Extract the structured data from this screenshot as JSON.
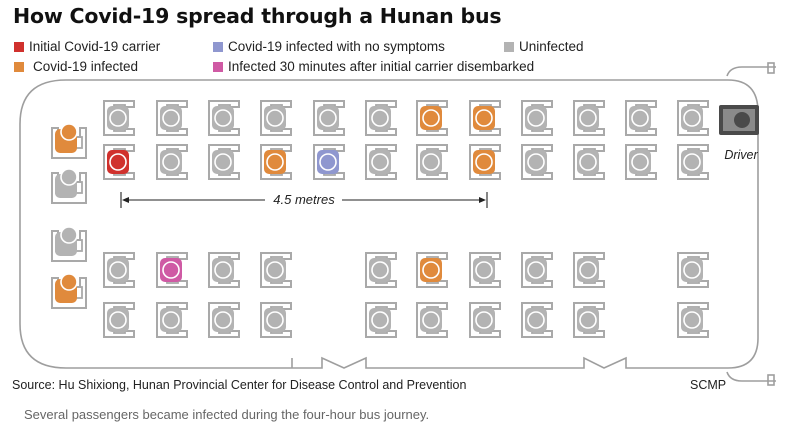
{
  "title": "How Covid-19 spread through a Hunan bus",
  "legend": [
    {
      "label": "Initial Covid-19 carrier",
      "color": "#d0312d"
    },
    {
      "label": "Covid-19 infected",
      "color": "#e08a3c"
    },
    {
      "label": "Covid-19 infected with no symptoms",
      "color": "#8f97cf"
    },
    {
      "label": "Infected 30 minutes after initial carrier disembarked",
      "color": "#cf5aa4"
    },
    {
      "label": "Uninfected",
      "color": "#b3b3b3"
    }
  ],
  "bus": {
    "driver_label": "Driver",
    "distance_label": "4.5 metres",
    "seat_status_legend": {
      "carrier": "Initial Covid-19 carrier",
      "infected": "Covid-19 infected",
      "asymptomatic": "Covid-19 infected with no symptoms",
      "late": "Infected 30 minutes after initial carrier disembarked",
      "uninfected": "Uninfected"
    },
    "rows": {
      "upper_window": [
        "uninfected",
        "uninfected",
        "uninfected",
        "uninfected",
        "uninfected",
        "uninfected",
        "infected",
        "infected",
        "uninfected",
        "uninfected",
        "uninfected",
        "uninfected"
      ],
      "upper_aisle": [
        "carrier",
        "uninfected",
        "uninfected",
        "infected",
        "asymptomatic",
        "uninfected",
        "uninfected",
        "infected",
        "uninfected",
        "uninfected",
        "uninfected",
        "uninfected"
      ],
      "lower_aisle": [
        "uninfected",
        "late",
        "uninfected",
        "uninfected",
        null,
        "uninfected",
        "infected",
        "uninfected",
        "uninfected",
        "uninfected",
        null,
        "uninfected"
      ],
      "lower_window": [
        "uninfected",
        "uninfected",
        "uninfected",
        "uninfected",
        null,
        "uninfected",
        "uninfected",
        "uninfected",
        "uninfected",
        "uninfected",
        null,
        "uninfected"
      ],
      "back_bench": [
        "infected",
        "uninfected",
        "uninfected",
        "infected"
      ]
    }
  },
  "source": "Source: Hu Shixiong, Hunan Provincial Center for Disease Control and Prevention",
  "credit": "SCMP",
  "caption": "Several passengers became infected during the four-hour bus journey."
}
